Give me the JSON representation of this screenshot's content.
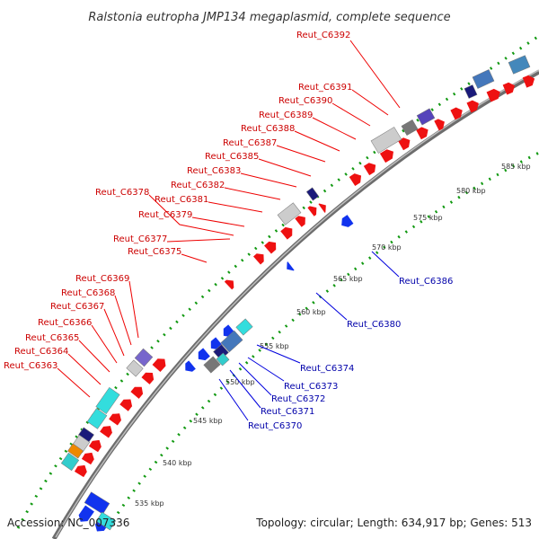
{
  "title": "Ralstonia eutropha JMP134 megaplasmid, complete sequence",
  "footer": {
    "accession": "Accession: NC_007336",
    "stats": "Topology: circular; Length: 634,917 bp; Genes: 513"
  },
  "ticks": [
    {
      "label": "535 kbp"
    },
    {
      "label": "540 kbp"
    },
    {
      "label": "545 kbp"
    },
    {
      "label": "550 kbp"
    },
    {
      "label": "555 kbp"
    },
    {
      "label": "560 kbp"
    },
    {
      "label": "565 kbp"
    },
    {
      "label": "570 kbp"
    },
    {
      "label": "575 kbp"
    },
    {
      "label": "580 kbp"
    },
    {
      "label": "585 kbp"
    }
  ],
  "labels_forward": [
    "Reut_C6392",
    "Reut_C6391",
    "Reut_C6390",
    "Reut_C6389",
    "Reut_C6388",
    "Reut_C6387",
    "Reut_C6385",
    "Reut_C6383",
    "Reut_C6382",
    "Reut_C6378",
    "Reut_C6381",
    "Reut_C6379",
    "Reut_C6377",
    "Reut_C6375",
    "Reut_C6369",
    "Reut_C6368",
    "Reut_C6367",
    "Reut_C6366",
    "Reut_C6365",
    "Reut_C6364",
    "Reut_C6363"
  ],
  "labels_reverse": [
    "Reut_C6386",
    "Reut_C6380",
    "Reut_C6374",
    "Reut_C6373",
    "Reut_C6372",
    "Reut_C6371",
    "Reut_C6370"
  ],
  "colors": {
    "forward_cds": "#ee1111",
    "reverse_cds": "#1133ee",
    "backbone": "#888888",
    "dots": "#119911",
    "label_forward": "#cc0000",
    "label_reverse": "#0000aa"
  }
}
